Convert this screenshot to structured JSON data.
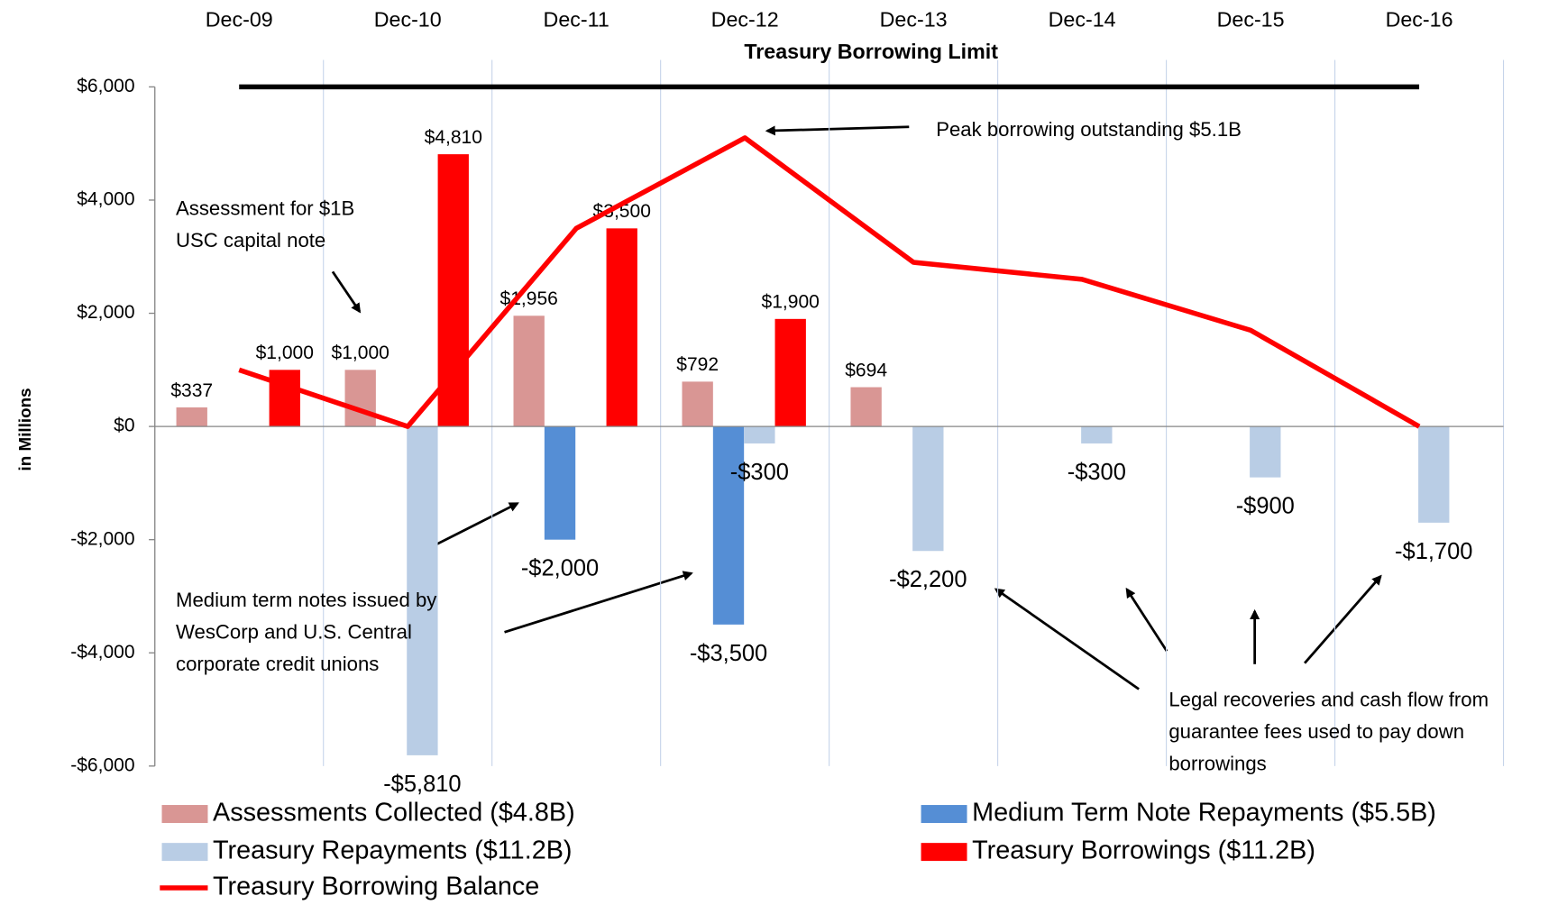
{
  "chart_data": {
    "type": "bar",
    "categories": [
      "Dec-09",
      "Dec-10",
      "Dec-11",
      "Dec-12",
      "Dec-13",
      "Dec-14",
      "Dec-15",
      "Dec-16"
    ],
    "y_axis_label": "in Millions",
    "ylim": [
      -6000,
      6000
    ],
    "yticks": [
      {
        "value": -6000,
        "label": "-$6,000"
      },
      {
        "value": -4000,
        "label": "-$4,000"
      },
      {
        "value": -2000,
        "label": "-$2,000"
      },
      {
        "value": 0,
        "label": "$0"
      },
      {
        "value": 2000,
        "label": "$2,000"
      },
      {
        "value": 4000,
        "label": "$4,000"
      },
      {
        "value": 6000,
        "label": "$6,000"
      }
    ],
    "series": [
      {
        "name": "Assessments Collected ($4.8B)",
        "type": "bar",
        "color": "#d99694",
        "values": [
          337,
          1000,
          1956,
          792,
          694,
          null,
          null,
          null
        ],
        "value_labels": [
          "$337",
          "$1,000",
          "$1,956",
          "$792",
          "$694",
          null,
          null,
          null
        ]
      },
      {
        "name": "Medium Term Note Repayments ($5.5B)",
        "type": "bar",
        "color": "#558ed5",
        "values": [
          null,
          null,
          -2000,
          -3500,
          null,
          null,
          null,
          null
        ],
        "value_labels": [
          null,
          null,
          "-$2,000",
          "-$3,500",
          null,
          null,
          null,
          null
        ]
      },
      {
        "name": "Treasury Repayments ($11.2B)",
        "type": "bar",
        "color": "#b9cde5",
        "values": [
          null,
          -5810,
          null,
          -300,
          -2200,
          -300,
          -900,
          -1700
        ],
        "value_labels": [
          null,
          "-$5,810",
          null,
          "-$300",
          "-$2,200",
          "-$300",
          "-$900",
          "-$1,700"
        ]
      },
      {
        "name": "Treasury Borrowings ($11.2B)",
        "type": "bar",
        "color": "#ff0000",
        "values": [
          1000,
          4810,
          3500,
          1900,
          null,
          null,
          null,
          null
        ],
        "value_labels": [
          "$1,000",
          "$4,810",
          "$3,500",
          "$1,900",
          null,
          null,
          null,
          null
        ]
      },
      {
        "name": "Treasury Borrowing Balance",
        "type": "line",
        "color": "#ff0000",
        "values": [
          1000,
          0,
          3500,
          5100,
          2900,
          2600,
          1700,
          0
        ]
      }
    ],
    "limit": {
      "label": "Treasury Borrowing Limit",
      "color": "#000000",
      "values": [
        6000,
        6000,
        6000,
        6000,
        6000,
        6000,
        6000,
        6000
      ]
    },
    "annotations": [
      {
        "lines": [
          "Peak borrowing outstanding $5.1B"
        ]
      },
      {
        "lines": [
          "Assessment for $1B",
          "USC capital note"
        ]
      },
      {
        "lines": [
          "Medium term notes issued by",
          "WesCorp and U.S. Central",
          "corporate credit unions"
        ]
      },
      {
        "lines": [
          "Legal recoveries and cash flow from",
          "guarantee fees used to pay down",
          "borrowings"
        ]
      }
    ]
  }
}
